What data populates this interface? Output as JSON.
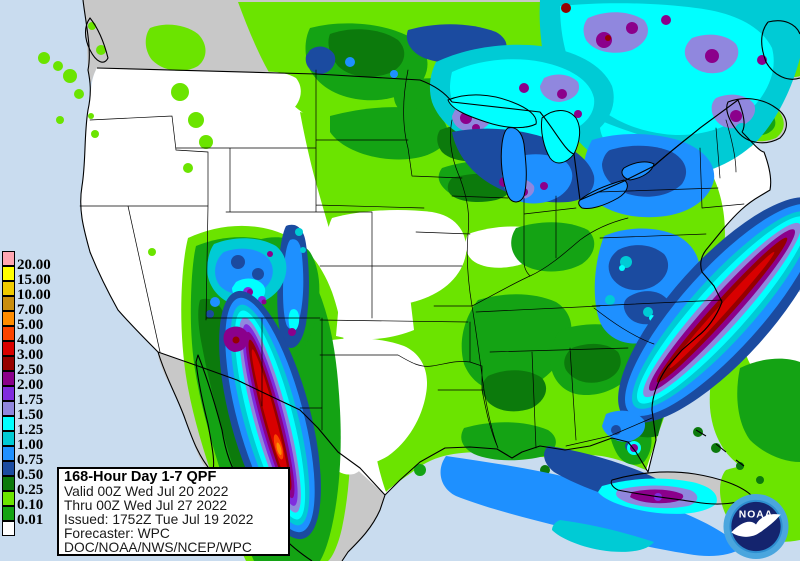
{
  "legend": {
    "entries": [
      {
        "label": "20.00",
        "color": "#FFA6B2"
      },
      {
        "label": "15.00",
        "color": "#FFFF00"
      },
      {
        "label": "10.00",
        "color": "#EFCB00"
      },
      {
        "label": "7.00",
        "color": "#C98E0E"
      },
      {
        "label": "5.00",
        "color": "#FF8C00"
      },
      {
        "label": "4.00",
        "color": "#FB4300"
      },
      {
        "label": "3.00",
        "color": "#D80000"
      },
      {
        "label": "2.50",
        "color": "#950000"
      },
      {
        "label": "2.00",
        "color": "#8B008B"
      },
      {
        "label": "1.75",
        "color": "#7F2CDF"
      },
      {
        "label": "1.50",
        "color": "#9087DE"
      },
      {
        "label": "1.25",
        "color": "#00FFFF"
      },
      {
        "label": "1.00",
        "color": "#00CBD5"
      },
      {
        "label": "0.75",
        "color": "#1E90FF"
      },
      {
        "label": "0.50",
        "color": "#1B4BA0"
      },
      {
        "label": "0.25",
        "color": "#0C7A0C"
      },
      {
        "label": "0.10",
        "color": "#6BE400"
      },
      {
        "label": "0.01",
        "color": "#14A314"
      },
      {
        "label": "",
        "color": "#FFFFFF"
      }
    ]
  },
  "info_box": {
    "title": "168-Hour Day 1-7 QPF",
    "lines": [
      "Valid 00Z Wed Jul 20 2022",
      "Thru 00Z Wed Jul 27 2022",
      "Issued: 1752Z Tue Jul 19 2022",
      "Forecaster: WPC",
      "DOC/NOAA/NWS/NCEP/WPC"
    ]
  },
  "noaa_logo": {
    "label": "NOAA"
  },
  "map": {
    "ocean_color": "#C9DCEF",
    "foreign_land_color": "#C8C8C8",
    "us_land_color": "#FFFFFF",
    "outline_color": "#000000"
  }
}
